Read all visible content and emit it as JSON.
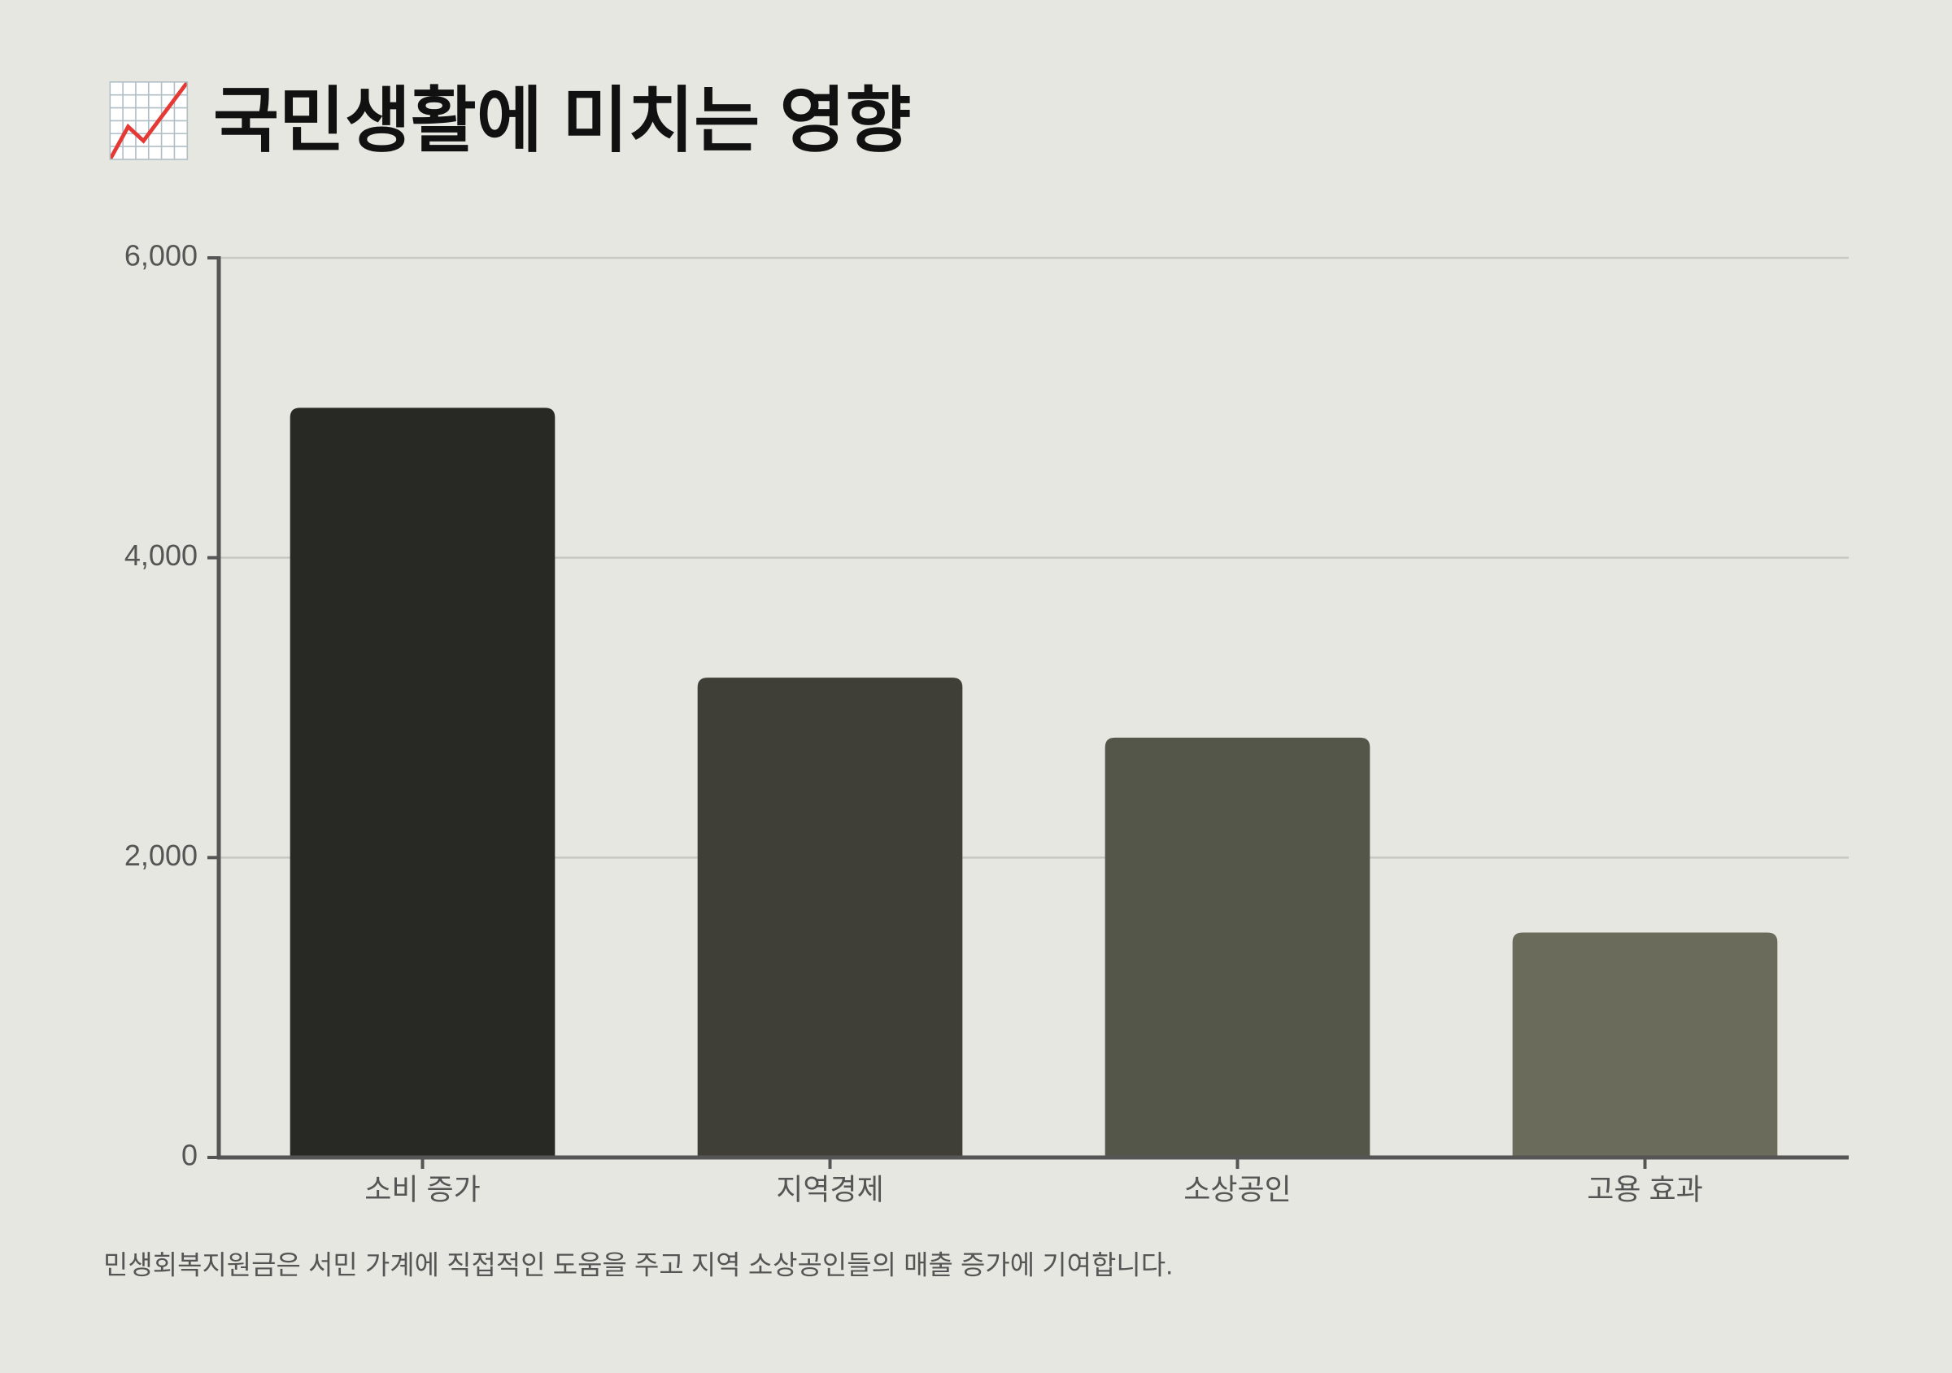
{
  "chart_data": {
    "type": "bar",
    "title": "📈 국민생활에 미치는 영향",
    "categories": [
      "소비 증가",
      "지역경제",
      "소상공인",
      "고용 효과"
    ],
    "values": [
      5000,
      3200,
      2800,
      1500
    ],
    "colors": [
      "#282924",
      "#3f3f37",
      "#55564a",
      "#6b6b5b"
    ],
    "ylim": [
      0,
      6000
    ],
    "yticks": [
      0,
      {
        "value": 2000,
        "label": "2,000"
      },
      {
        "value": 4000,
        "label": "4,000"
      },
      {
        "value": 6000,
        "label": "6,000"
      }
    ],
    "grid": true,
    "note": "민생회복지원금은 서민 가계에 직접적인 도움을 주고 지역 소상공인들의 매출 증가에 기여합니다."
  }
}
